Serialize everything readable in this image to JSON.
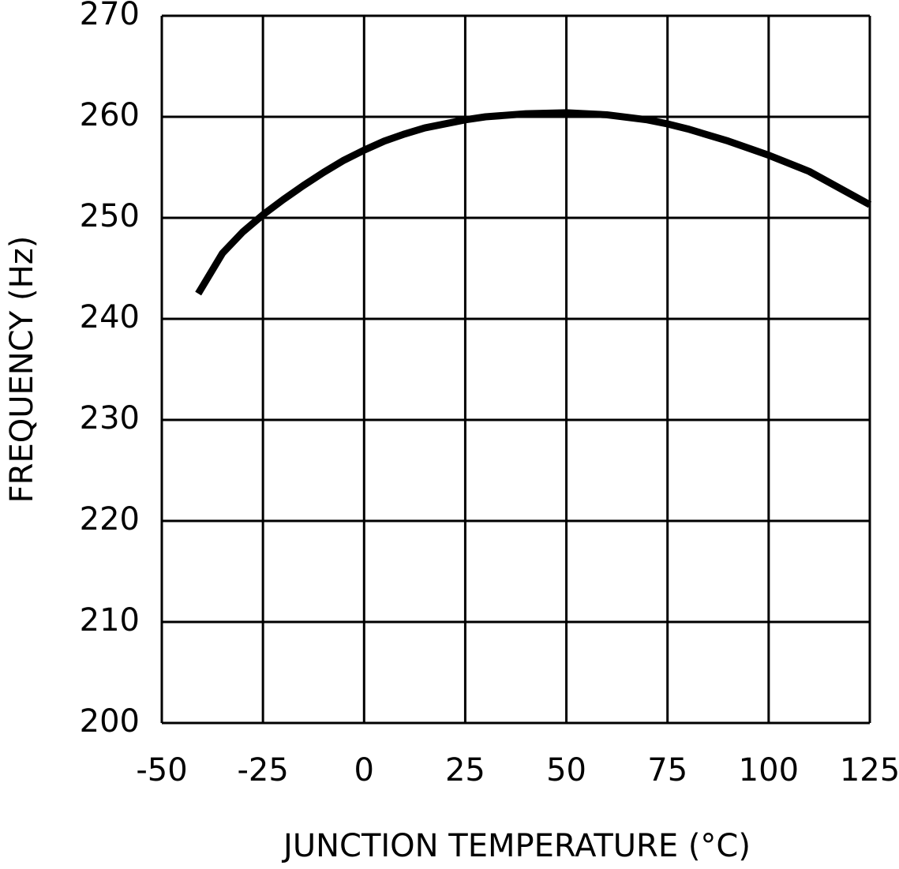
{
  "chart_data": {
    "type": "line",
    "x_label": "JUNCTION TEMPERATURE (°C)",
    "y_label": "FREQUENCY (Hz)",
    "x": [
      -41,
      -35,
      -30,
      -25,
      -20,
      -15,
      -10,
      -5,
      0,
      5,
      10,
      15,
      20,
      25,
      30,
      40,
      50,
      60,
      70,
      75,
      80,
      90,
      100,
      110,
      125
    ],
    "series": [
      {
        "color": "#000000",
        "values": [
          242.5,
          246.5,
          248.6,
          250.3,
          251.8,
          253.2,
          254.5,
          255.7,
          256.7,
          257.6,
          258.3,
          258.9,
          259.3,
          259.7,
          260.0,
          260.3,
          260.4,
          260.2,
          259.7,
          259.3,
          258.8,
          257.6,
          256.2,
          254.6,
          251.3
        ]
      }
    ],
    "xlim": [
      -50,
      125
    ],
    "xticks": [
      -50,
      -25,
      0,
      25,
      50,
      75,
      100,
      125
    ],
    "ylim": [
      200,
      270
    ],
    "yticks": [
      200,
      210,
      220,
      230,
      240,
      250,
      260,
      270
    ],
    "grid": true
  }
}
